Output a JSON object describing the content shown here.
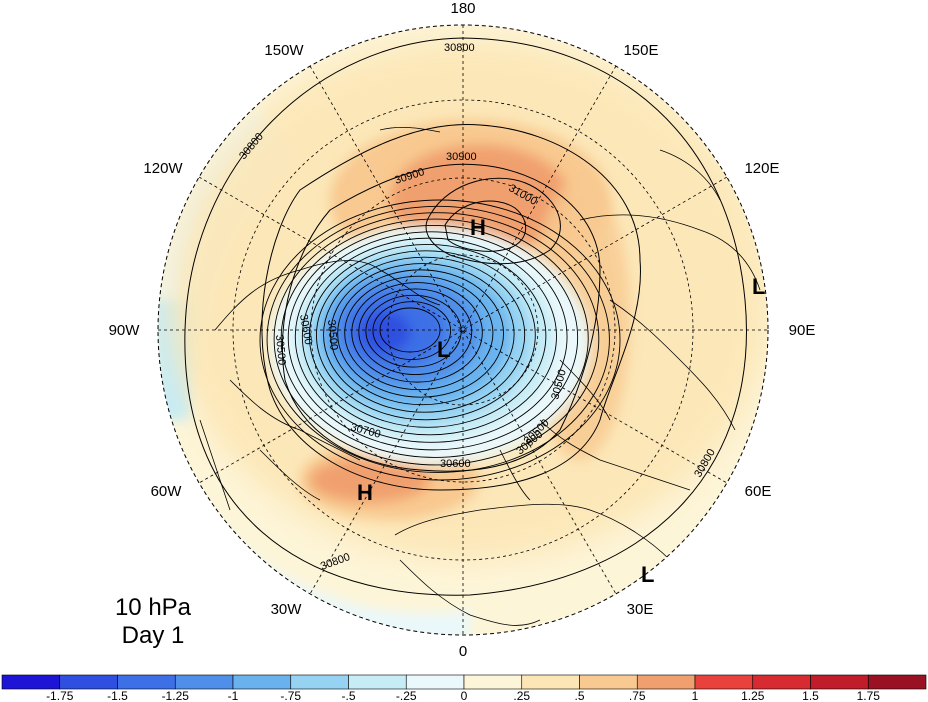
{
  "title": {
    "level": "10 hPa",
    "day": "Day 1"
  },
  "longitude_labels": [
    "180",
    "150E",
    "120E",
    "90E",
    "60E",
    "30E",
    "0",
    "30W",
    "60W",
    "90W",
    "120W",
    "150W"
  ],
  "contour_labels": [
    "30800",
    "30900",
    "30900",
    "31000",
    "30800",
    "30700",
    "30600",
    "30500",
    "30500",
    "30600",
    "30800",
    "30800",
    "30500",
    "30500",
    "30600"
  ],
  "centers": [
    {
      "label": "H",
      "name": "high-north-pacific"
    },
    {
      "label": "L",
      "name": "low-polar"
    },
    {
      "label": "H",
      "name": "high-north-atlantic"
    },
    {
      "label": "L",
      "name": "low-east-asia"
    },
    {
      "label": "L",
      "name": "low-arabia"
    }
  ],
  "colorbar": {
    "ticks": [
      "-1.75",
      "-1.5",
      "-1.25",
      "-1",
      "-.75",
      "-.5",
      "-.25",
      "0",
      ".25",
      ".5",
      ".75",
      "1",
      "1.25",
      "1.5",
      "1.75"
    ],
    "colors": [
      "#1d14d6",
      "#2f4fe0",
      "#3d6fe6",
      "#4f8ee9",
      "#69b2ee",
      "#96d3f2",
      "#c6ecf6",
      "#eaf8fb",
      "#fdf5d8",
      "#fce6b5",
      "#f8c990",
      "#f0a06e",
      "#e9423d",
      "#d82a31",
      "#c01c2a",
      "#9a1124"
    ]
  }
}
